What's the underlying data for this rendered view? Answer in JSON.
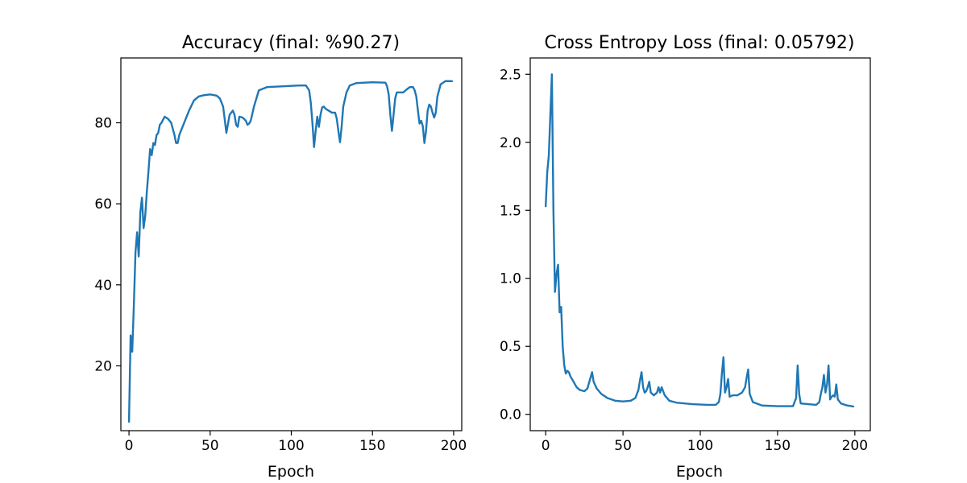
{
  "chart_data": [
    {
      "type": "line",
      "title": "Accuracy (final: %90.27)",
      "xlabel": "Epoch",
      "ylabel": "",
      "xlim": [
        -5,
        205
      ],
      "ylim": [
        4,
        96
      ],
      "x_ticks": [
        0,
        50,
        100,
        150,
        200
      ],
      "y_ticks": [
        20,
        40,
        60,
        80
      ],
      "grid": false,
      "color": "#1f77b4",
      "series": [
        {
          "points": [
            [
              0,
              6.2
            ],
            [
              1,
              27.5
            ],
            [
              2,
              23.5
            ],
            [
              3,
              35
            ],
            [
              4,
              48
            ],
            [
              5,
              53
            ],
            [
              6,
              47
            ],
            [
              7,
              58
            ],
            [
              8,
              61.5
            ],
            [
              9,
              54
            ],
            [
              10,
              57
            ],
            [
              11,
              63
            ],
            [
              12,
              68
            ],
            [
              13,
              73.5
            ],
            [
              14,
              72
            ],
            [
              15,
              75
            ],
            [
              16,
              74.5
            ],
            [
              17,
              77
            ],
            [
              18,
              77.5
            ],
            [
              19,
              79.5
            ],
            [
              20,
              80
            ],
            [
              22,
              81.5
            ],
            [
              24,
              81
            ],
            [
              26,
              80
            ],
            [
              28,
              77
            ],
            [
              29,
              75
            ],
            [
              30,
              75
            ],
            [
              31,
              77
            ],
            [
              33,
              79
            ],
            [
              35,
              81
            ],
            [
              37,
              83
            ],
            [
              40,
              85.5
            ],
            [
              43,
              86.5
            ],
            [
              46,
              86.8
            ],
            [
              50,
              87
            ],
            [
              54,
              86.7
            ],
            [
              56,
              86
            ],
            [
              58,
              84
            ],
            [
              60,
              77.5
            ],
            [
              62,
              82
            ],
            [
              64,
              83
            ],
            [
              65,
              82
            ],
            [
              66,
              79.5
            ],
            [
              67,
              79
            ],
            [
              68,
              81.5
            ],
            [
              70,
              81.3
            ],
            [
              72,
              80.5
            ],
            [
              73,
              79.5
            ],
            [
              74,
              79.8
            ],
            [
              75,
              80.5
            ],
            [
              77,
              84
            ],
            [
              80,
              88
            ],
            [
              85,
              88.8
            ],
            [
              95,
              89
            ],
            [
              105,
              89.2
            ],
            [
              109,
              89.2
            ],
            [
              111,
              88
            ],
            [
              112,
              85
            ],
            [
              113,
              80
            ],
            [
              114,
              74
            ],
            [
              115,
              78
            ],
            [
              116,
              81.5
            ],
            [
              117,
              79
            ],
            [
              118,
              82
            ],
            [
              119,
              83.8
            ],
            [
              120,
              84
            ],
            [
              121,
              83.5
            ],
            [
              123,
              83
            ],
            [
              125,
              82.5
            ],
            [
              127,
              82.5
            ],
            [
              128,
              81
            ],
            [
              129,
              78
            ],
            [
              130,
              75.2
            ],
            [
              131,
              79
            ],
            [
              132,
              84
            ],
            [
              134,
              87.5
            ],
            [
              136,
              89.2
            ],
            [
              140,
              89.8
            ],
            [
              150,
              90
            ],
            [
              158,
              89.9
            ],
            [
              159,
              89
            ],
            [
              160,
              87
            ],
            [
              161,
              82
            ],
            [
              162,
              78
            ],
            [
              163,
              82
            ],
            [
              164,
              86
            ],
            [
              165,
              87.5
            ],
            [
              167,
              87.5
            ],
            [
              169,
              87.5
            ],
            [
              171,
              88.2
            ],
            [
              173,
              88.8
            ],
            [
              175,
              88.8
            ],
            [
              176,
              88
            ],
            [
              177,
              86.5
            ],
            [
              178,
              83
            ],
            [
              179,
              79.8
            ],
            [
              180,
              80.5
            ],
            [
              181,
              79.2
            ],
            [
              182,
              75
            ],
            [
              183,
              78
            ],
            [
              184,
              83
            ],
            [
              185,
              84.5
            ],
            [
              186,
              84
            ],
            [
              187,
              82.5
            ],
            [
              188,
              81.3
            ],
            [
              189,
              82.5
            ],
            [
              190,
              86.5
            ],
            [
              192,
              89.5
            ],
            [
              195,
              90.3
            ],
            [
              199,
              90.27
            ]
          ]
        }
      ]
    },
    {
      "type": "line",
      "title": "Cross Entropy Loss (final: 0.05792)",
      "xlabel": "Epoch",
      "ylabel": "",
      "xlim": [
        -10,
        210
      ],
      "ylim": [
        -0.12,
        2.62
      ],
      "x_ticks": [
        0,
        50,
        100,
        150,
        200
      ],
      "y_ticks": [
        0.0,
        0.5,
        1.0,
        1.5,
        2.0,
        2.5
      ],
      "y_tick_labels": [
        "0.0",
        "0.5",
        "1.0",
        "1.5",
        "2.0",
        "2.5"
      ],
      "grid": false,
      "color": "#1f77b4",
      "series": [
        {
          "points": [
            [
              0,
              1.53
            ],
            [
              1,
              1.78
            ],
            [
              2,
              1.9
            ],
            [
              3,
              2.2
            ],
            [
              4,
              2.5
            ],
            [
              5,
              1.5
            ],
            [
              6,
              0.9
            ],
            [
              7,
              1.03
            ],
            [
              8,
              1.1
            ],
            [
              9,
              0.75
            ],
            [
              10,
              0.79
            ],
            [
              11,
              0.5
            ],
            [
              12,
              0.36
            ],
            [
              13,
              0.3
            ],
            [
              14,
              0.32
            ],
            [
              15,
              0.31
            ],
            [
              16,
              0.28
            ],
            [
              18,
              0.24
            ],
            [
              20,
              0.2
            ],
            [
              22,
              0.18
            ],
            [
              25,
              0.17
            ],
            [
              27,
              0.19
            ],
            [
              29,
              0.27
            ],
            [
              30,
              0.31
            ],
            [
              31,
              0.24
            ],
            [
              33,
              0.19
            ],
            [
              36,
              0.15
            ],
            [
              40,
              0.12
            ],
            [
              45,
              0.1
            ],
            [
              50,
              0.095
            ],
            [
              55,
              0.1
            ],
            [
              58,
              0.12
            ],
            [
              60,
              0.18
            ],
            [
              61,
              0.25
            ],
            [
              62,
              0.31
            ],
            [
              63,
              0.2
            ],
            [
              64,
              0.16
            ],
            [
              65,
              0.17
            ],
            [
              66,
              0.2
            ],
            [
              67,
              0.24
            ],
            [
              68,
              0.16
            ],
            [
              70,
              0.14
            ],
            [
              72,
              0.16
            ],
            [
              73,
              0.2
            ],
            [
              74,
              0.16
            ],
            [
              75,
              0.2
            ],
            [
              76,
              0.17
            ],
            [
              77,
              0.14
            ],
            [
              80,
              0.1
            ],
            [
              85,
              0.085
            ],
            [
              95,
              0.075
            ],
            [
              105,
              0.07
            ],
            [
              110,
              0.07
            ],
            [
              112,
              0.09
            ],
            [
              113,
              0.15
            ],
            [
              114,
              0.3
            ],
            [
              115,
              0.42
            ],
            [
              116,
              0.16
            ],
            [
              117,
              0.2
            ],
            [
              118,
              0.26
            ],
            [
              119,
              0.13
            ],
            [
              121,
              0.14
            ],
            [
              124,
              0.14
            ],
            [
              127,
              0.16
            ],
            [
              129,
              0.2
            ],
            [
              130,
              0.27
            ],
            [
              131,
              0.33
            ],
            [
              132,
              0.15
            ],
            [
              134,
              0.09
            ],
            [
              140,
              0.065
            ],
            [
              150,
              0.06
            ],
            [
              160,
              0.06
            ],
            [
              162,
              0.12
            ],
            [
              163,
              0.36
            ],
            [
              164,
              0.15
            ],
            [
              165,
              0.08
            ],
            [
              170,
              0.075
            ],
            [
              175,
              0.07
            ],
            [
              177,
              0.09
            ],
            [
              178,
              0.15
            ],
            [
              179,
              0.2
            ],
            [
              180,
              0.29
            ],
            [
              181,
              0.16
            ],
            [
              182,
              0.22
            ],
            [
              183,
              0.36
            ],
            [
              184,
              0.11
            ],
            [
              185,
              0.13
            ],
            [
              186,
              0.14
            ],
            [
              187,
              0.13
            ],
            [
              188,
              0.22
            ],
            [
              189,
              0.11
            ],
            [
              191,
              0.08
            ],
            [
              195,
              0.065
            ],
            [
              199,
              0.058
            ]
          ]
        }
      ]
    }
  ]
}
